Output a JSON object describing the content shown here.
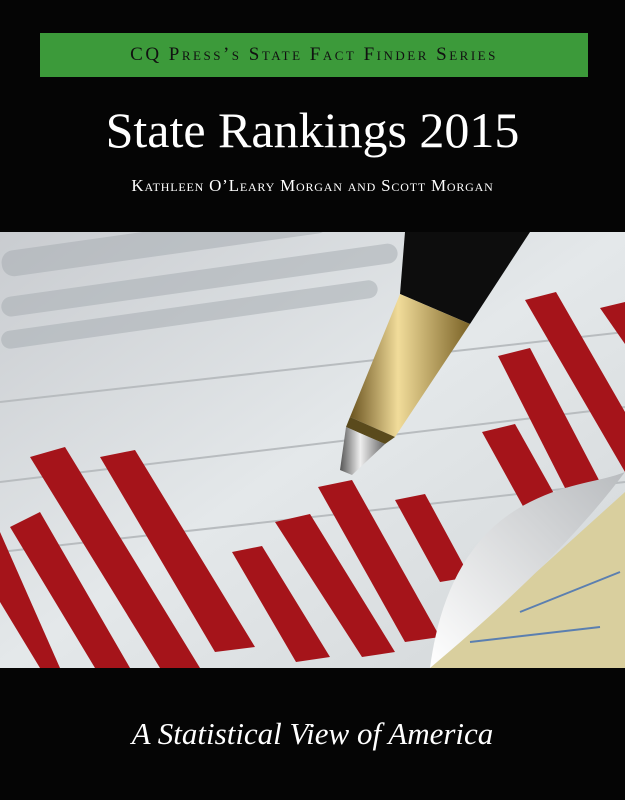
{
  "cover": {
    "series": "CQ Press’s State Fact Finder Series",
    "title": "State Rankings 2015",
    "authors": "Kathleen O’Leary Morgan and Scott Morgan",
    "tagline": "A Statistical View of America"
  }
}
